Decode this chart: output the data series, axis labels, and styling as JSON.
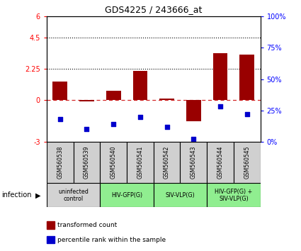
{
  "title": "GDS4225 / 243666_at",
  "samples": [
    "GSM560538",
    "GSM560539",
    "GSM560540",
    "GSM560541",
    "GSM560542",
    "GSM560543",
    "GSM560544",
    "GSM560545"
  ],
  "transformed_count": [
    1.3,
    -0.08,
    0.65,
    2.1,
    0.1,
    -1.55,
    3.35,
    3.25
  ],
  "percentile_rank": [
    18,
    10,
    14,
    20,
    12,
    2,
    28,
    22
  ],
  "ylim_left": [
    -3,
    6
  ],
  "ylim_right": [
    0,
    100
  ],
  "yticks_left": [
    -3,
    0,
    2.25,
    4.5,
    6
  ],
  "ytick_labels_left": [
    "-3",
    "0",
    "2.25",
    "4.5",
    "6"
  ],
  "yticks_right": [
    0,
    25,
    50,
    75,
    100
  ],
  "ytick_labels_right": [
    "0%",
    "25%",
    "50%",
    "75%",
    "100%"
  ],
  "hlines_dotted": [
    4.5,
    2.25
  ],
  "hline_dashed": 0,
  "bar_color": "#990000",
  "dot_color": "#0000CC",
  "infection_groups": [
    {
      "label": "uninfected\ncontrol",
      "start": 0,
      "end": 2,
      "color": "#d3d3d3"
    },
    {
      "label": "HIV-GFP(G)",
      "start": 2,
      "end": 4,
      "color": "#90EE90"
    },
    {
      "label": "SIV-VLP(G)",
      "start": 4,
      "end": 6,
      "color": "#90EE90"
    },
    {
      "label": "HIV-GFP(G) +\nSIV-VLP(G)",
      "start": 6,
      "end": 8,
      "color": "#90EE90"
    }
  ],
  "legend_items": [
    {
      "label": "transformed count",
      "color": "#990000"
    },
    {
      "label": "percentile rank within the sample",
      "color": "#0000CC"
    }
  ],
  "infection_label": "infection",
  "bar_width": 0.55,
  "dot_size": 18
}
